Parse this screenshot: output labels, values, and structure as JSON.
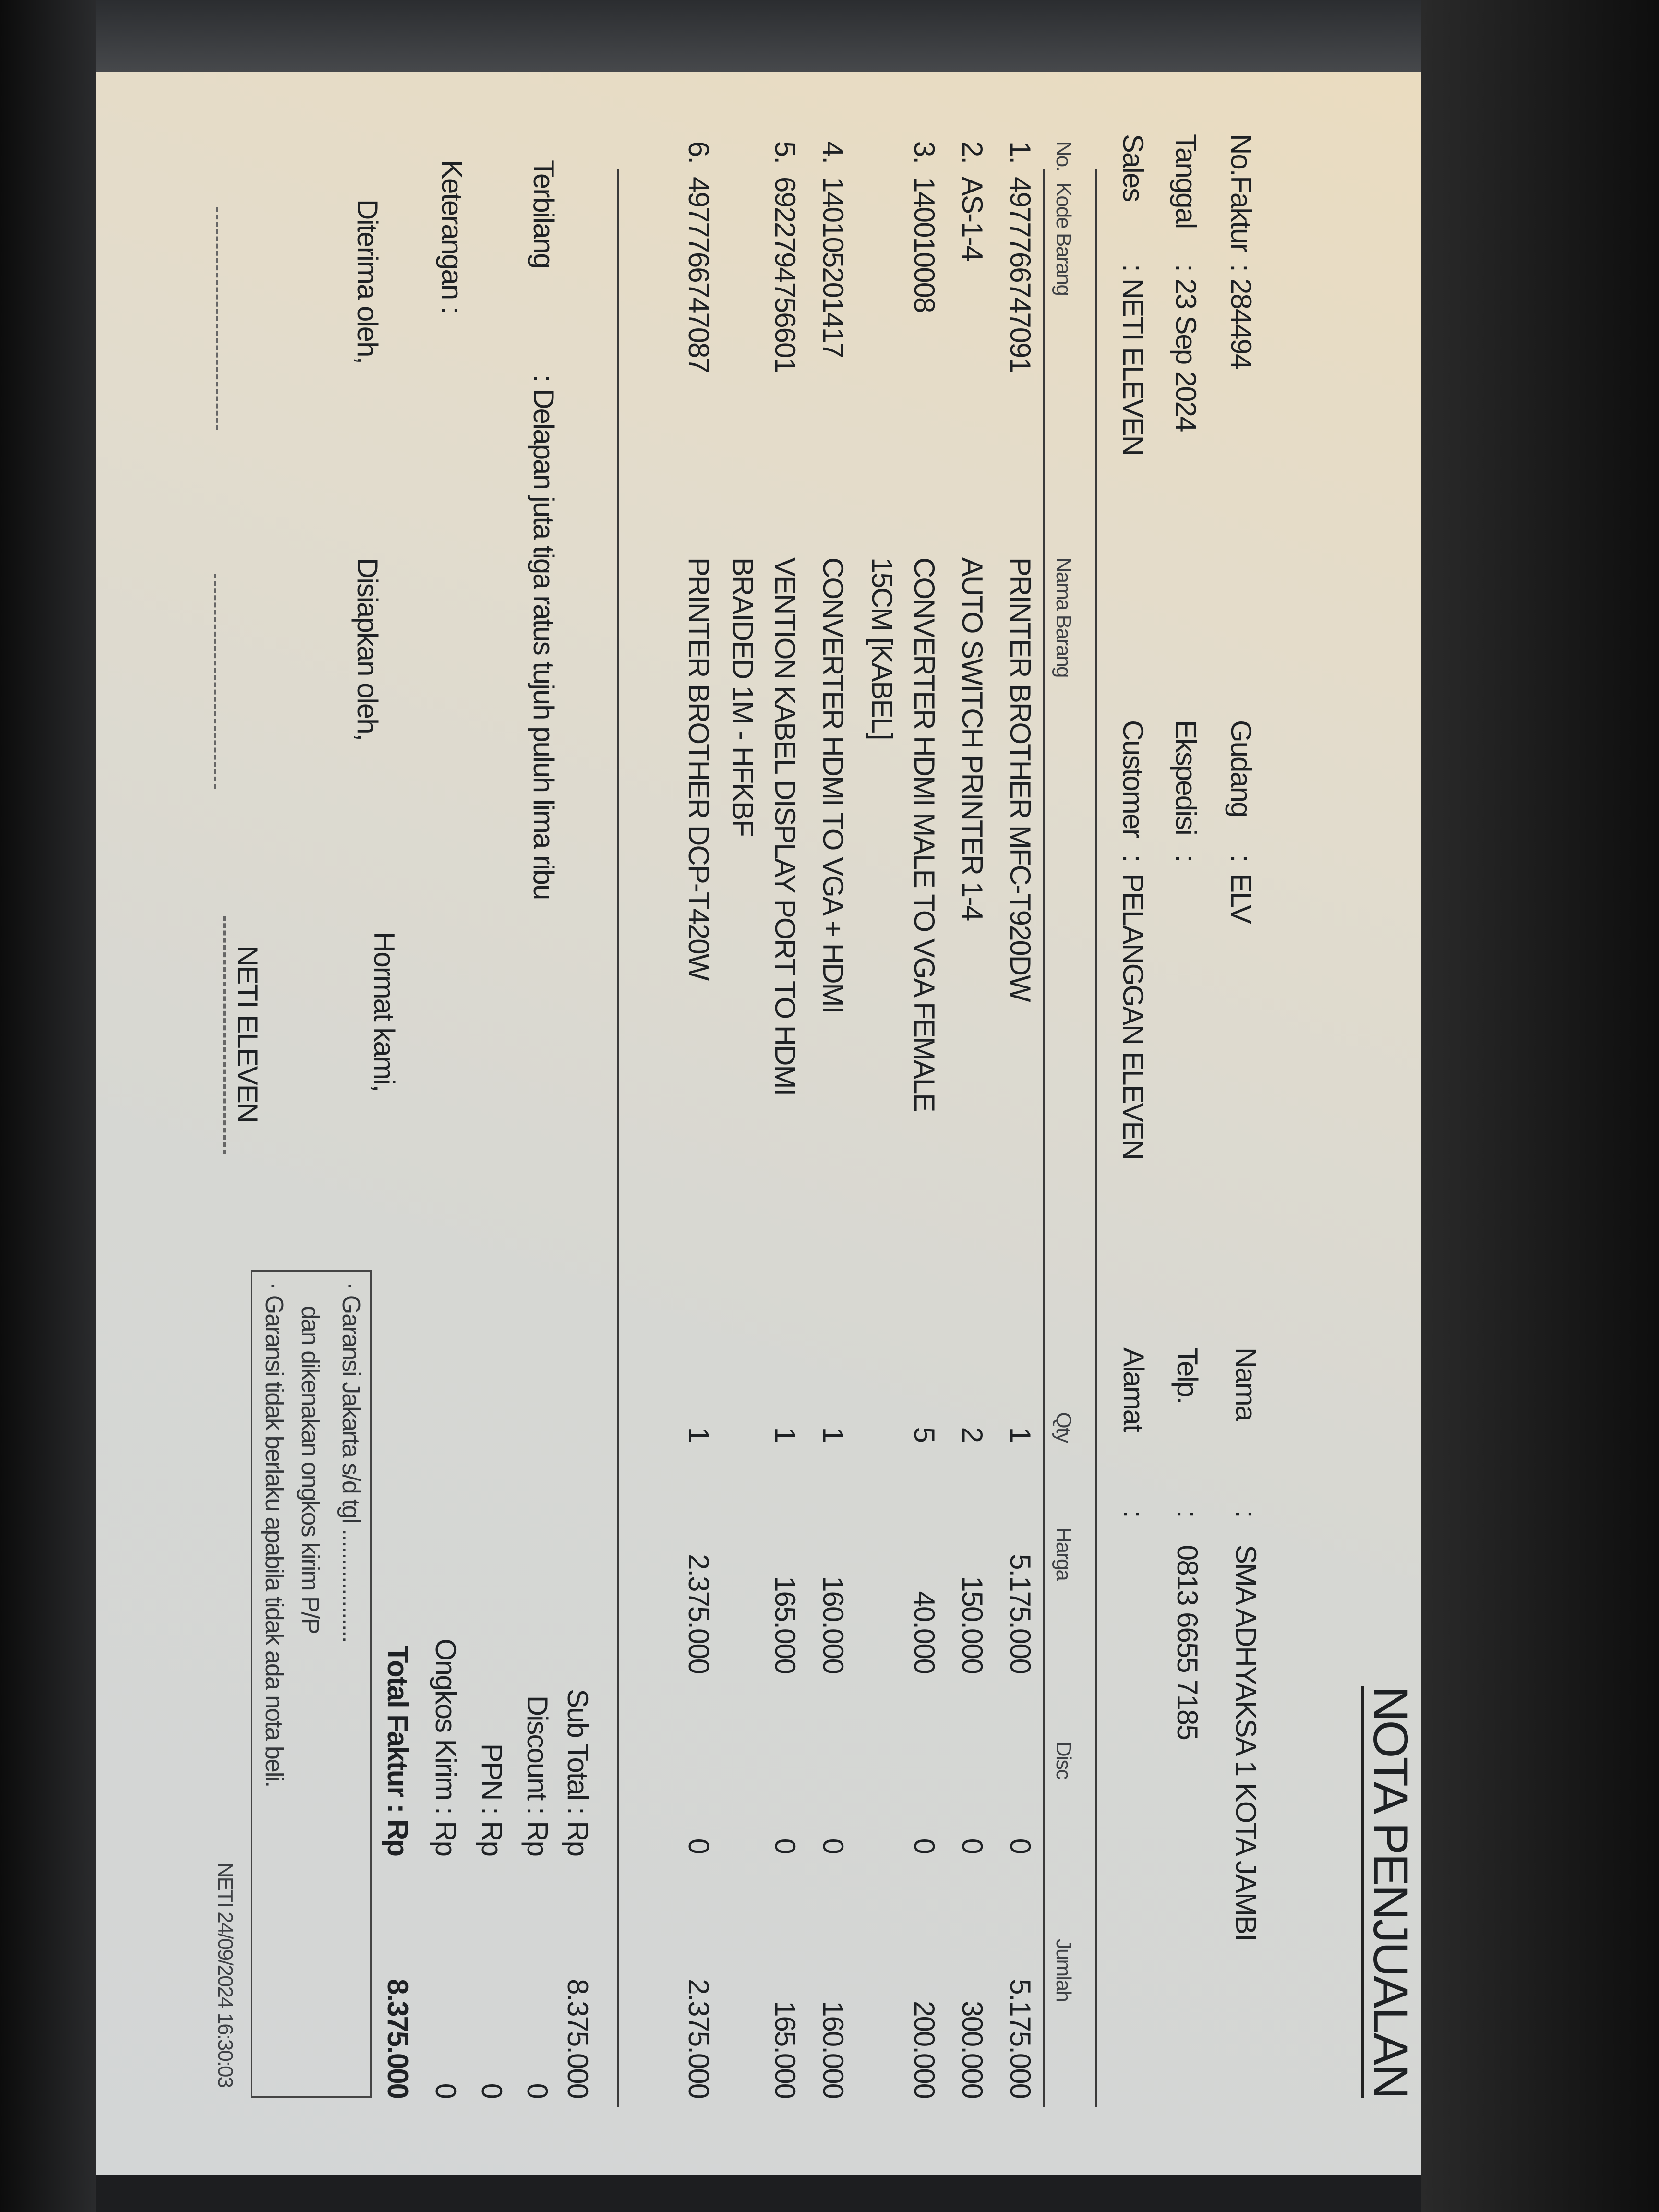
{
  "title": "NOTA PENJUALAN",
  "header": {
    "no_faktur": {
      "label": "No.Faktur",
      "value": "284494"
    },
    "tanggal": {
      "label": "Tanggal",
      "value": "23 Sep 2024"
    },
    "sales": {
      "label": "Sales",
      "value": "NETI ELEVEN"
    },
    "gudang": {
      "label": "Gudang",
      "value": "ELV"
    },
    "ekspedisi": {
      "label": "Ekspedisi",
      "value": ""
    },
    "customer": {
      "label": "Customer",
      "value": "PELANGGAN ELEVEN"
    },
    "nama": {
      "label": "Nama",
      "value": "SMA ADHYAKSA 1 KOTA JAMBI"
    },
    "telp": {
      "label": "Telp.",
      "value": "0813 6655 7185"
    },
    "alamat": {
      "label": "Alamat",
      "value": ""
    },
    "sep": ":"
  },
  "table": {
    "columns": [
      "No.",
      "Kode Barang",
      "Nama Barang",
      "Qty",
      "Harga",
      "Disc",
      "Jumlah"
    ],
    "rows": [
      {
        "no": "1.",
        "kode": "4977766747091",
        "nama": "PRINTER BROTHER MFC-T920DW",
        "nama2": "",
        "qty": "1",
        "harga": "5.175.000",
        "disc": "0",
        "jumlah": "5.175.000"
      },
      {
        "no": "2.",
        "kode": "AS-1-4",
        "nama": "AUTO SWITCH PRINTER 1-4",
        "nama2": "",
        "qty": "2",
        "harga": "150.000",
        "disc": "0",
        "jumlah": "300.000"
      },
      {
        "no": "3.",
        "kode": "140010008",
        "nama": "CONVERTER HDMI MALE TO VGA FEMALE",
        "nama2": "15CM [KABEL]",
        "qty": "5",
        "harga": "40.000",
        "disc": "0",
        "jumlah": "200.000"
      },
      {
        "no": "4.",
        "kode": "140105201417",
        "nama": "CONVERTER HDMI TO VGA + HDMI",
        "nama2": "",
        "qty": "1",
        "harga": "160.000",
        "disc": "0",
        "jumlah": "160.000"
      },
      {
        "no": "5.",
        "kode": "6922794756601",
        "nama": "VENTION KABEL DISPLAY PORT TO HDMI",
        "nama2": "BRAIDED 1M - HFKBF",
        "qty": "1",
        "harga": "165.000",
        "disc": "0",
        "jumlah": "165.000"
      },
      {
        "no": "6.",
        "kode": "4977766747087",
        "nama": "PRINTER BROTHER DCP-T420W",
        "nama2": "",
        "qty": "1",
        "harga": "2.375.000",
        "disc": "0",
        "jumlah": "2.375.000"
      }
    ]
  },
  "terbilang": {
    "label": "Terbilang",
    "value": ": Delapan juta tiga ratus tujuh puluh lima ribu"
  },
  "keterangan": {
    "label": "Keterangan :"
  },
  "totals": [
    {
      "label": "Sub Total : Rp",
      "value": "8.375.000"
    },
    {
      "label": "Discount : Rp",
      "value": "0"
    },
    {
      "label": "PPN : Rp",
      "value": "0"
    },
    {
      "label": "Ongkos Kirim : Rp",
      "value": "0"
    },
    {
      "label": "Total Faktur : Rp",
      "value": "8.375.000"
    }
  ],
  "signatures": {
    "diterima": "Diterima oleh,",
    "disiapkan": "Disiapkan oleh,",
    "hormat": "Hormat kami,",
    "hormat_name": "NETI ELEVEN"
  },
  "notes": [
    "· Garansi Jakarta s/d tgl ...................",
    "dan dikenakan ongkos kirim P/P",
    "· Garansi tidak berlaku apabila tidak ada nota beli."
  ],
  "footer": "NETI 24/09/2024 16:30:03"
}
